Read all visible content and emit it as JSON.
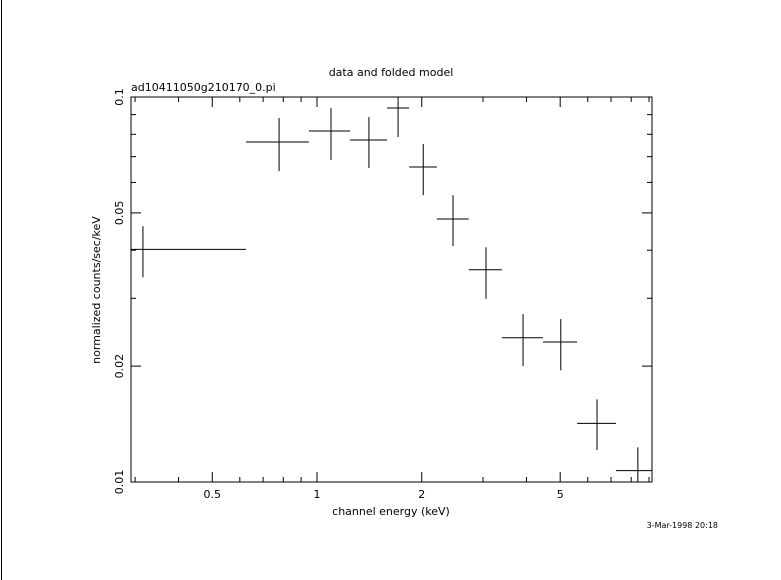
{
  "chart_data": {
    "type": "errorbar",
    "title": "data and folded model",
    "subtitle": "ad10411050g210170_0.pi",
    "x_label": "channel energy (keV)",
    "y_label": "normalized counts/sec/keV",
    "timestamp": "3-Mar-1998 20:18",
    "log_x": true,
    "log_y": true,
    "xlim": [
      0.292,
      9.18
    ],
    "ylim": [
      0.01,
      0.1
    ],
    "xticks": [
      0.5,
      1,
      2,
      5
    ],
    "x_minor_ticks": [
      0.3,
      0.4,
      0.6,
      0.7,
      0.8,
      0.9,
      3,
      4,
      6,
      7,
      8,
      9
    ],
    "yticks": [
      0.01,
      0.02,
      0.05,
      0.1
    ],
    "y_minor_ticks": [
      0.03,
      0.04,
      0.06,
      0.07,
      0.08,
      0.09
    ],
    "color": "#000000",
    "series": [
      {
        "name": "data",
        "x": [
          0.316,
          0.778,
          1.097,
          1.41,
          1.71,
          2.02,
          2.46,
          3.06,
          3.91,
          5.02,
          6.38,
          8.36
        ],
        "x_low": [
          0.292,
          0.625,
          0.948,
          1.245,
          1.59,
          1.84,
          2.21,
          2.73,
          3.4,
          4.46,
          5.59,
          7.23
        ],
        "x_high": [
          0.625,
          0.948,
          1.245,
          1.59,
          1.84,
          2.21,
          2.73,
          3.4,
          4.46,
          5.59,
          7.23,
          9.6
        ],
        "values": [
          0.0402,
          0.0764,
          0.0816,
          0.0773,
          0.0936,
          0.0658,
          0.0482,
          0.0356,
          0.0237,
          0.0231,
          0.0142,
          0.0107
        ],
        "y_low": [
          0.034,
          0.0642,
          0.0686,
          0.0654,
          0.0787,
          0.0556,
          0.041,
          0.0299,
          0.02,
          0.0195,
          0.0121,
          0.0095
        ],
        "y_high": [
          0.0462,
          0.0882,
          0.0936,
          0.0887,
          0.101,
          0.0755,
          0.0556,
          0.0407,
          0.0273,
          0.0265,
          0.0164,
          0.0123
        ]
      }
    ]
  }
}
